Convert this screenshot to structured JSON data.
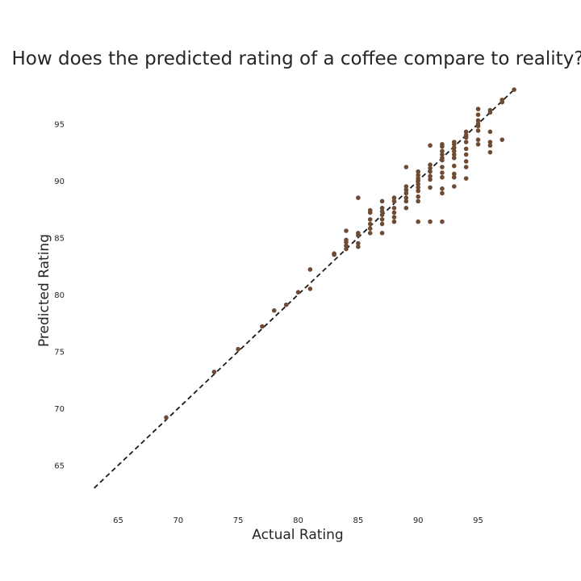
{
  "chart_data": {
    "type": "scatter",
    "title": "How does the predicted rating of a coffee compare to reality?",
    "xlabel": "Actual Rating",
    "ylabel": "Predicted Rating",
    "xlim": [
      61,
      99
    ],
    "ylim": [
      61,
      99
    ],
    "xticks": [
      65,
      70,
      75,
      80,
      85,
      90,
      95
    ],
    "yticks": [
      65,
      70,
      75,
      80,
      85,
      90,
      95
    ],
    "grid": false,
    "point_color": "#6e4b34",
    "reference_line": {
      "style": "dashed",
      "color": "#1a1a1a",
      "from": [
        63,
        63
      ],
      "to": [
        98,
        98
      ]
    },
    "points": [
      [
        69,
        69.2
      ],
      [
        73,
        73.2
      ],
      [
        75,
        75.2
      ],
      [
        77,
        77.2
      ],
      [
        78,
        78.6
      ],
      [
        79,
        79.1
      ],
      [
        80,
        80.2
      ],
      [
        81,
        80.5
      ],
      [
        81,
        82.2
      ],
      [
        83,
        83.5
      ],
      [
        83,
        83.6
      ],
      [
        84,
        84.0
      ],
      [
        84,
        84.3
      ],
      [
        84,
        84.6
      ],
      [
        84,
        84.8
      ],
      [
        84,
        85.6
      ],
      [
        85,
        84.2
      ],
      [
        85,
        84.5
      ],
      [
        85,
        85.2
      ],
      [
        85,
        85.4
      ],
      [
        85,
        88.5
      ],
      [
        86,
        85.4
      ],
      [
        86,
        85.8
      ],
      [
        86,
        86.2
      ],
      [
        86,
        86.6
      ],
      [
        86,
        87.2
      ],
      [
        86,
        87.4
      ],
      [
        87,
        85.4
      ],
      [
        87,
        86.2
      ],
      [
        87,
        86.6
      ],
      [
        87,
        87.0
      ],
      [
        87,
        87.3
      ],
      [
        87,
        87.6
      ],
      [
        87,
        88.2
      ],
      [
        88,
        86.4
      ],
      [
        88,
        86.8
      ],
      [
        88,
        87.2
      ],
      [
        88,
        87.6
      ],
      [
        88,
        88.2
      ],
      [
        88,
        88.5
      ],
      [
        89,
        87.6
      ],
      [
        89,
        88.2
      ],
      [
        89,
        88.5
      ],
      [
        89,
        88.9
      ],
      [
        89,
        89.2
      ],
      [
        89,
        89.5
      ],
      [
        89,
        91.2
      ],
      [
        90,
        86.4
      ],
      [
        90,
        88.2
      ],
      [
        90,
        88.6
      ],
      [
        90,
        89.1
      ],
      [
        90,
        89.4
      ],
      [
        90,
        89.7
      ],
      [
        90,
        90.0
      ],
      [
        90,
        90.2
      ],
      [
        90,
        90.5
      ],
      [
        90,
        90.8
      ],
      [
        91,
        86.4
      ],
      [
        91,
        89.4
      ],
      [
        91,
        90.1
      ],
      [
        91,
        90.4
      ],
      [
        91,
        90.8
      ],
      [
        91,
        91.1
      ],
      [
        91,
        91.4
      ],
      [
        91,
        93.1
      ],
      [
        92,
        86.4
      ],
      [
        92,
        88.9
      ],
      [
        92,
        89.3
      ],
      [
        92,
        90.3
      ],
      [
        92,
        90.7
      ],
      [
        92,
        91.2
      ],
      [
        92,
        91.8
      ],
      [
        92,
        92.0
      ],
      [
        92,
        92.3
      ],
      [
        92,
        92.6
      ],
      [
        92,
        93.0
      ],
      [
        92,
        93.2
      ],
      [
        93,
        89.5
      ],
      [
        93,
        90.3
      ],
      [
        93,
        90.6
      ],
      [
        93,
        91.3
      ],
      [
        93,
        92.0
      ],
      [
        93,
        92.3
      ],
      [
        93,
        92.6
      ],
      [
        93,
        92.9
      ],
      [
        93,
        93.2
      ],
      [
        93,
        93.4
      ],
      [
        94,
        90.2
      ],
      [
        94,
        91.2
      ],
      [
        94,
        91.7
      ],
      [
        94,
        92.3
      ],
      [
        94,
        92.8
      ],
      [
        94,
        93.4
      ],
      [
        94,
        93.8
      ],
      [
        94,
        94.0
      ],
      [
        94,
        94.3
      ],
      [
        95,
        93.2
      ],
      [
        95,
        93.6
      ],
      [
        95,
        94.4
      ],
      [
        95,
        94.8
      ],
      [
        95,
        95.0
      ],
      [
        95,
        95.3
      ],
      [
        95,
        95.8
      ],
      [
        95,
        96.3
      ],
      [
        96,
        92.5
      ],
      [
        96,
        93.1
      ],
      [
        96,
        93.4
      ],
      [
        96,
        94.3
      ],
      [
        96,
        96.0
      ],
      [
        96,
        96.2
      ],
      [
        97,
        93.6
      ],
      [
        97,
        96.9
      ],
      [
        97,
        97.1
      ],
      [
        98,
        98.0
      ]
    ]
  }
}
